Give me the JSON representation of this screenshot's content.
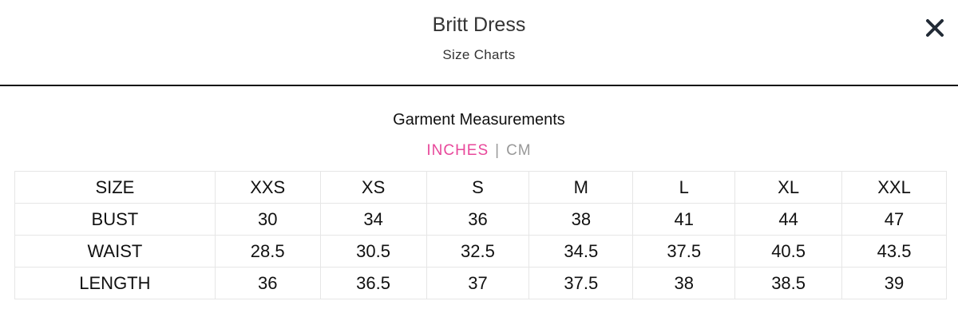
{
  "header": {
    "title": "Britt Dress",
    "subtitle": "Size Charts",
    "close_icon": "close-x-icon"
  },
  "section_title": "Garment Measurements",
  "units": {
    "active": "INCHES",
    "separator": "|",
    "inactive": "CM",
    "active_color": "#e8489b"
  },
  "table": {
    "rows": [
      [
        "SIZE",
        "XXS",
        "XS",
        "S",
        "M",
        "L",
        "XL",
        "XXL"
      ],
      [
        "BUST",
        "30",
        "34",
        "36",
        "38",
        "41",
        "44",
        "47"
      ],
      [
        "WAIST",
        "28.5",
        "30.5",
        "32.5",
        "34.5",
        "37.5",
        "40.5",
        "43.5"
      ],
      [
        "LENGTH",
        "36",
        "36.5",
        "37",
        "37.5",
        "38",
        "38.5",
        "39"
      ]
    ]
  }
}
